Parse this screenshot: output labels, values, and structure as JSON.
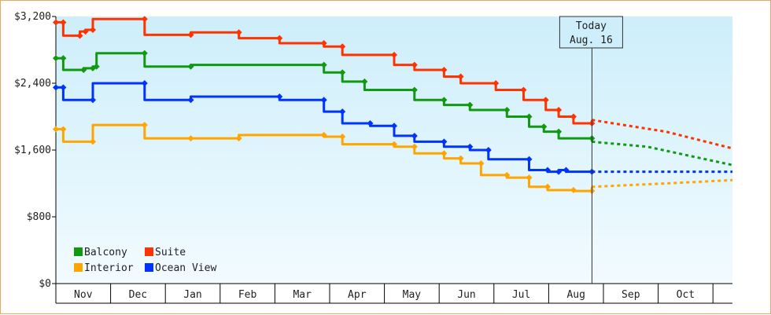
{
  "chart_data": {
    "type": "line",
    "y_unit": "USD",
    "ylim": [
      0,
      3200
    ],
    "y_ticks": [
      "$0",
      "$800",
      "$1,600",
      "$2,400",
      "$3,200"
    ],
    "y_tick_values": [
      0,
      800,
      1600,
      2400,
      3200
    ],
    "x_months": [
      "Nov",
      "Dec",
      "Jan",
      "Feb",
      "Mar",
      "Apr",
      "May",
      "Jun",
      "Jul",
      "Aug",
      "Sep",
      "Oct"
    ],
    "x_range_days": [
      0,
      366
    ],
    "today": {
      "line1": "Today",
      "line2": "Aug. 16",
      "day": 290
    },
    "legend_placement": "bottom-left",
    "series": [
      {
        "name": "Balcony",
        "color": "#119911",
        "points": [
          [
            0,
            2700
          ],
          [
            4,
            2700
          ],
          [
            4,
            2560
          ],
          [
            15,
            2560
          ],
          [
            15,
            2580
          ],
          [
            20,
            2580
          ],
          [
            20,
            2600
          ],
          [
            22,
            2600
          ],
          [
            22,
            2760
          ],
          [
            48,
            2760
          ],
          [
            48,
            2600
          ],
          [
            73,
            2600
          ],
          [
            73,
            2620
          ],
          [
            145,
            2620
          ],
          [
            145,
            2530
          ],
          [
            155,
            2530
          ],
          [
            155,
            2420
          ],
          [
            167,
            2420
          ],
          [
            167,
            2320
          ],
          [
            194,
            2320
          ],
          [
            194,
            2200
          ],
          [
            210,
            2200
          ],
          [
            210,
            2140
          ],
          [
            224,
            2140
          ],
          [
            224,
            2080
          ],
          [
            244,
            2080
          ],
          [
            244,
            2000
          ],
          [
            256,
            2000
          ],
          [
            256,
            1880
          ],
          [
            264,
            1880
          ],
          [
            264,
            1820
          ],
          [
            272,
            1820
          ],
          [
            272,
            1740
          ],
          [
            290,
            1740
          ],
          [
            290,
            1700
          ]
        ],
        "forecast": [
          [
            290,
            1700
          ],
          [
            320,
            1640
          ],
          [
            366,
            1420
          ]
        ]
      },
      {
        "name": "Suite",
        "color": "#ff3300",
        "points": [
          [
            0,
            3130
          ],
          [
            4,
            3130
          ],
          [
            4,
            2970
          ],
          [
            13,
            2970
          ],
          [
            13,
            3020
          ],
          [
            16,
            3020
          ],
          [
            16,
            3040
          ],
          [
            20,
            3040
          ],
          [
            20,
            3170
          ],
          [
            48,
            3170
          ],
          [
            48,
            2980
          ],
          [
            73,
            2980
          ],
          [
            73,
            3010
          ],
          [
            99,
            3010
          ],
          [
            99,
            2940
          ],
          [
            121,
            2940
          ],
          [
            121,
            2880
          ],
          [
            145,
            2880
          ],
          [
            145,
            2840
          ],
          [
            155,
            2840
          ],
          [
            155,
            2740
          ],
          [
            183,
            2740
          ],
          [
            183,
            2620
          ],
          [
            194,
            2620
          ],
          [
            194,
            2560
          ],
          [
            210,
            2560
          ],
          [
            210,
            2480
          ],
          [
            219,
            2480
          ],
          [
            219,
            2400
          ],
          [
            238,
            2400
          ],
          [
            238,
            2320
          ],
          [
            253,
            2320
          ],
          [
            253,
            2200
          ],
          [
            265,
            2200
          ],
          [
            265,
            2080
          ],
          [
            272,
            2080
          ],
          [
            272,
            2000
          ],
          [
            280,
            2000
          ],
          [
            280,
            1920
          ],
          [
            290,
            1920
          ],
          [
            290,
            1960
          ]
        ],
        "forecast": [
          [
            290,
            1960
          ],
          [
            330,
            1820
          ],
          [
            366,
            1620
          ]
        ]
      },
      {
        "name": "Interior",
        "color": "#ffa500",
        "points": [
          [
            0,
            1850
          ],
          [
            4,
            1850
          ],
          [
            4,
            1700
          ],
          [
            20,
            1700
          ],
          [
            20,
            1900
          ],
          [
            48,
            1900
          ],
          [
            48,
            1740
          ],
          [
            73,
            1740
          ],
          [
            73,
            1740
          ],
          [
            99,
            1740
          ],
          [
            99,
            1780
          ],
          [
            145,
            1780
          ],
          [
            145,
            1760
          ],
          [
            155,
            1760
          ],
          [
            155,
            1670
          ],
          [
            183,
            1670
          ],
          [
            183,
            1640
          ],
          [
            194,
            1640
          ],
          [
            194,
            1560
          ],
          [
            210,
            1560
          ],
          [
            210,
            1500
          ],
          [
            219,
            1500
          ],
          [
            219,
            1440
          ],
          [
            230,
            1440
          ],
          [
            230,
            1300
          ],
          [
            244,
            1300
          ],
          [
            244,
            1270
          ],
          [
            256,
            1270
          ],
          [
            256,
            1160
          ],
          [
            266,
            1160
          ],
          [
            266,
            1120
          ],
          [
            280,
            1120
          ],
          [
            280,
            1110
          ],
          [
            290,
            1110
          ],
          [
            290,
            1160
          ]
        ],
        "forecast": [
          [
            290,
            1160
          ],
          [
            330,
            1200
          ],
          [
            366,
            1240
          ]
        ]
      },
      {
        "name": "Ocean View",
        "color": "#0033ff",
        "points": [
          [
            0,
            2350
          ],
          [
            4,
            2350
          ],
          [
            4,
            2200
          ],
          [
            20,
            2200
          ],
          [
            20,
            2400
          ],
          [
            48,
            2400
          ],
          [
            48,
            2200
          ],
          [
            73,
            2200
          ],
          [
            73,
            2240
          ],
          [
            121,
            2240
          ],
          [
            121,
            2200
          ],
          [
            145,
            2200
          ],
          [
            145,
            2060
          ],
          [
            155,
            2060
          ],
          [
            155,
            1920
          ],
          [
            170,
            1920
          ],
          [
            170,
            1890
          ],
          [
            183,
            1890
          ],
          [
            183,
            1770
          ],
          [
            194,
            1770
          ],
          [
            194,
            1700
          ],
          [
            210,
            1700
          ],
          [
            210,
            1640
          ],
          [
            224,
            1640
          ],
          [
            224,
            1600
          ],
          [
            234,
            1600
          ],
          [
            234,
            1490
          ],
          [
            256,
            1490
          ],
          [
            256,
            1360
          ],
          [
            266,
            1360
          ],
          [
            266,
            1340
          ],
          [
            272,
            1340
          ],
          [
            272,
            1360
          ],
          [
            276,
            1360
          ],
          [
            276,
            1340
          ],
          [
            290,
            1340
          ]
        ],
        "forecast": [
          [
            290,
            1340
          ],
          [
            330,
            1340
          ],
          [
            366,
            1340
          ]
        ]
      }
    ],
    "legend_order": [
      "Balcony",
      "Suite",
      "Interior",
      "Ocean View"
    ]
  }
}
